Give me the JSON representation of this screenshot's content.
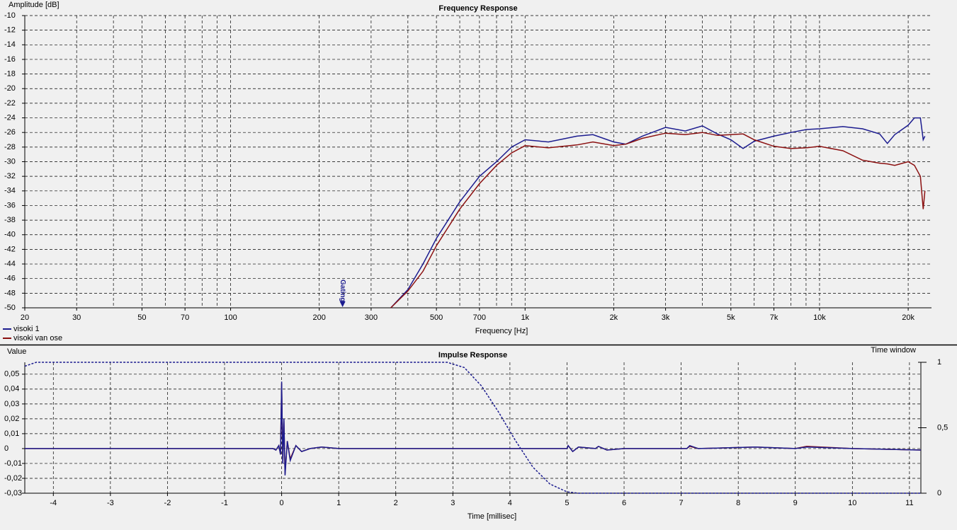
{
  "chart_data": [
    {
      "type": "line",
      "title": "Frequency Response",
      "x_label": "Frequency [Hz]",
      "y_label": "Amplitude [dB]",
      "log_x": true,
      "grid": true,
      "legend": "bottom-left",
      "xlim": [
        20,
        24000
      ],
      "xticks": [
        20,
        30,
        50,
        70,
        100,
        200,
        300,
        500,
        700,
        {
          "value": 1000,
          "label": "1k"
        },
        {
          "value": 2000,
          "label": "2k"
        },
        {
          "value": 3000,
          "label": "3k"
        },
        {
          "value": 5000,
          "label": "5k"
        },
        {
          "value": 7000,
          "label": "7k"
        },
        {
          "value": 10000,
          "label": "10k"
        },
        {
          "value": 20000,
          "label": "20k"
        }
      ],
      "xgrid": [
        30,
        40,
        50,
        60,
        70,
        80,
        90,
        100,
        200,
        300,
        400,
        500,
        600,
        700,
        800,
        900,
        1000,
        2000,
        3000,
        4000,
        5000,
        6000,
        7000,
        8000,
        9000,
        10000,
        20000
      ],
      "ylim": [
        -50,
        -10
      ],
      "yticks": [
        -10,
        -12,
        -14,
        -16,
        -18,
        -20,
        -22,
        -24,
        -26,
        -28,
        -30,
        -32,
        -34,
        -36,
        -38,
        -40,
        -42,
        -44,
        -46,
        -48,
        -50
      ],
      "annotation": {
        "text": "Gating",
        "x": 240
      },
      "x": [
        350,
        400,
        450,
        500,
        600,
        700,
        800,
        900,
        1000,
        1200,
        1500,
        1700,
        2000,
        2200,
        2500,
        3000,
        3500,
        4000,
        4500,
        5000,
        5500,
        6000,
        7000,
        8000,
        9000,
        10000,
        12000,
        14000,
        16000,
        17000,
        18000,
        20000,
        21000,
        22000,
        22500,
        22800
      ],
      "series": [
        {
          "name": "visoki 1",
          "color": "#1c1c8f",
          "values": [
            -50,
            -47.5,
            -44,
            -40.5,
            -35.5,
            -32,
            -30,
            -28,
            -27,
            -27.3,
            -26.5,
            -26.3,
            -27.3,
            -27.6,
            -26.5,
            -25.3,
            -25.8,
            -25.1,
            -26.2,
            -27,
            -28.2,
            -27.2,
            -26.5,
            -26,
            -25.6,
            -25.5,
            -25.2,
            -25.5,
            -26.2,
            -27.5,
            -26.3,
            -25,
            -24,
            -24,
            -27,
            -26.5
          ]
        },
        {
          "name": "visoki van ose",
          "color": "#8b1010",
          "values": [
            -50,
            -47.7,
            -45,
            -41.5,
            -36.5,
            -33,
            -30.5,
            -28.8,
            -27.8,
            -28.1,
            -27.7,
            -27.3,
            -27.8,
            -27.6,
            -26.8,
            -26.1,
            -26.3,
            -26,
            -26.4,
            -26.3,
            -26.2,
            -27,
            -27.9,
            -28.2,
            -28.1,
            -27.9,
            -28.5,
            -29.8,
            -30.2,
            -30.3,
            -30.5,
            -30,
            -30.5,
            -32,
            -36.5,
            -34
          ]
        }
      ]
    },
    {
      "type": "line",
      "title": "Impulse Response",
      "x_label": "Time [millisec]",
      "y_label": "Value",
      "y2_label": "Time window",
      "grid": true,
      "xlim": [
        -4.5,
        11.2
      ],
      "xticks": [
        -4,
        -3,
        -2,
        -1,
        0,
        1,
        2,
        3,
        4,
        5,
        6,
        7,
        8,
        9,
        10,
        11
      ],
      "ylim": [
        -0.03,
        0.058
      ],
      "yticks": [
        {
          "value": -0.03,
          "label": "-0,03"
        },
        {
          "value": -0.02,
          "label": "-0,02"
        },
        {
          "value": -0.01,
          "label": "-0,01"
        },
        0,
        {
          "value": 0.01,
          "label": "0,01"
        },
        {
          "value": 0.02,
          "label": "0,02"
        },
        {
          "value": 0.03,
          "label": "0,03"
        },
        {
          "value": 0.04,
          "label": "0,04"
        },
        {
          "value": 0.05,
          "label": "0,05"
        }
      ],
      "y2lim": [
        0,
        1
      ],
      "y2ticks": [
        0,
        {
          "value": 0.5,
          "label": "0,5"
        },
        1
      ],
      "x": [
        -4.5,
        -0.15,
        -0.1,
        -0.05,
        -0.02,
        0,
        0.02,
        0.04,
        0.06,
        0.1,
        0.15,
        0.25,
        0.35,
        0.5,
        0.7,
        1,
        1.5,
        5,
        5.02,
        5.1,
        5.2,
        5.5,
        5.55,
        5.7,
        6,
        7.1,
        7.15,
        7.3,
        8.3,
        9,
        9.2,
        10,
        11.2
      ],
      "series": [
        {
          "color": "#8b1010",
          "values": [
            0,
            0,
            -0.001,
            0.002,
            -0.004,
            0.044,
            -0.01,
            0.019,
            -0.017,
            0.005,
            -0.007,
            0.002,
            -0.002,
            0,
            0.001,
            0,
            0,
            0,
            0.002,
            -0.002,
            0.001,
            0,
            0.0015,
            -0.001,
            0,
            0,
            0.0015,
            0,
            0.001,
            0,
            0.0015,
            0,
            -0.001
          ]
        },
        {
          "color": "#1c1c8f",
          "values": [
            0,
            0,
            -0.001,
            0.002,
            -0.004,
            0.045,
            -0.01,
            0.02,
            -0.018,
            0.005,
            -0.008,
            0.002,
            -0.002,
            0,
            0.001,
            0,
            0,
            0,
            0.002,
            -0.002,
            0.001,
            0,
            0.0015,
            -0.001,
            0,
            0,
            0.002,
            0,
            0.001,
            0,
            0.001,
            0,
            -0.001
          ]
        },
        {
          "color": "#1c1c8f",
          "axis": "y2",
          "dashed": true,
          "x": [
            -4.5,
            -4.3,
            2.9,
            3.2,
            3.5,
            3.8,
            4.1,
            4.4,
            4.7,
            5,
            5.2,
            11.2
          ],
          "values": [
            0.97,
            1,
            1,
            0.96,
            0.82,
            0.62,
            0.4,
            0.2,
            0.07,
            0.01,
            0,
            0
          ]
        }
      ]
    }
  ]
}
